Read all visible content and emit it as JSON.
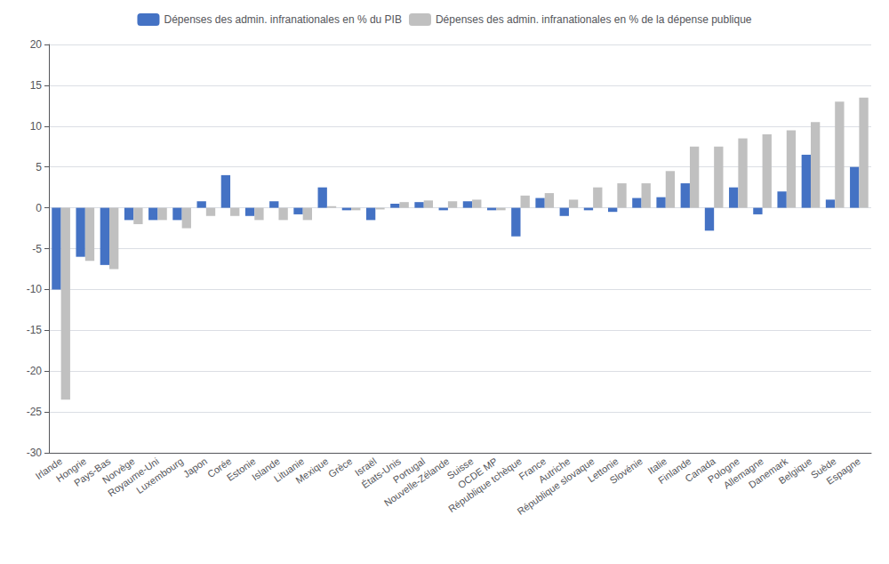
{
  "chart_data": {
    "type": "bar",
    "categories": [
      "Irlande",
      "Hongrie",
      "Pays-Bas",
      "Norvège",
      "Royaume-Uni",
      "Luxembourg",
      "Japon",
      "Corée",
      "Estonie",
      "Islande",
      "Lituanie",
      "Mexique",
      "Grèce",
      "Israël",
      "États-Unis",
      "Portugal",
      "Nouvelle-Zélande",
      "Suisse",
      "OCDE MP",
      "République tchèque",
      "France",
      "Autriche",
      "République slovaque",
      "Lettonie",
      "Slovénie",
      "Italie",
      "Finlande",
      "Canada",
      "Pologne",
      "Allemagne",
      "Danemark",
      "Belgique",
      "Suède",
      "Espagne"
    ],
    "series": [
      {
        "name": "Dépenses des admin. infranationales en % du PIB",
        "color": "#4472C4",
        "values": [
          -10.0,
          -6.0,
          -7.0,
          -1.5,
          -1.5,
          -1.5,
          0.8,
          4.0,
          -1.0,
          0.8,
          -0.8,
          2.5,
          -0.3,
          -1.5,
          0.5,
          0.7,
          -0.3,
          0.8,
          -0.3,
          -3.5,
          1.2,
          -1.0,
          -0.3,
          -0.5,
          1.2,
          1.3,
          3.0,
          -2.8,
          2.5,
          -0.8,
          2.0,
          6.5,
          1.0,
          5.0
        ]
      },
      {
        "name": "Dépenses des admin. infranationales en % de la dépense publique",
        "color": "#C0C0C0",
        "values": [
          -23.5,
          -6.5,
          -7.5,
          -2.0,
          -1.5,
          -2.5,
          -1.0,
          -1.0,
          -1.5,
          -1.5,
          -1.5,
          0.2,
          -0.3,
          -0.2,
          0.7,
          0.9,
          0.8,
          1.0,
          -0.3,
          1.5,
          1.8,
          1.0,
          2.5,
          3.0,
          3.0,
          4.5,
          7.5,
          7.5,
          8.5,
          9.0,
          9.5,
          10.5,
          13.0,
          13.5
        ]
      }
    ],
    "ylim": [
      -30,
      20
    ],
    "yticks": [
      -30,
      -25,
      -20,
      -15,
      -10,
      -5,
      0,
      5,
      10,
      15,
      20
    ],
    "grid": true,
    "legend": "top"
  }
}
